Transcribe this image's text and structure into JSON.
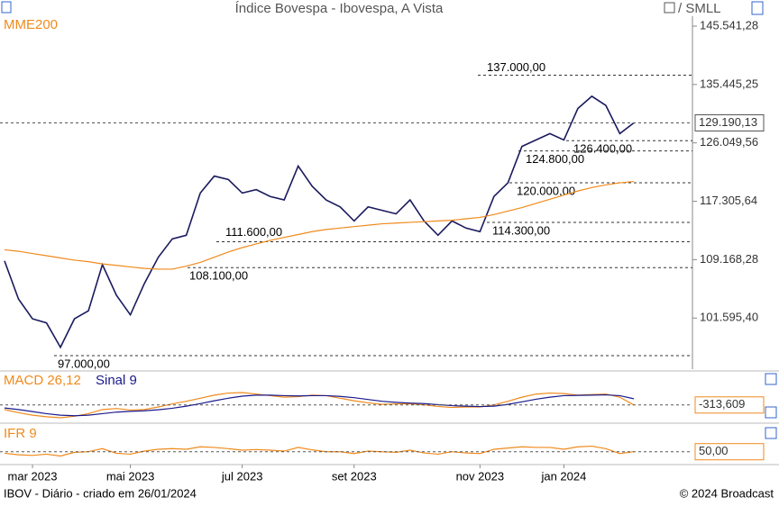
{
  "chart_data": [
    {
      "type": "line",
      "title": "Índice Bovespa - Ibovespa, A Vista",
      "subtitle": "/ SMLL",
      "log_scale": true,
      "categories": [
        null,
        null,
        "mar 2023",
        null,
        null,
        null,
        null,
        null,
        null,
        "mai 2023",
        null,
        null,
        null,
        null,
        null,
        null,
        null,
        "jul 2023",
        null,
        null,
        null,
        null,
        null,
        null,
        null,
        "set 2023",
        null,
        null,
        null,
        null,
        null,
        null,
        null,
        null,
        "nov 2023",
        null,
        null,
        null,
        null,
        null,
        "jan 2024",
        null,
        null,
        null,
        null,
        null
      ],
      "series": [
        {
          "name": "Ibovespa",
          "color": "#1a1a5e",
          "values": [
            109000,
            104000,
            101500,
            101000,
            98000,
            101500,
            102500,
            108500,
            104500,
            102000,
            106000,
            109500,
            112000,
            112500,
            118500,
            121000,
            120500,
            118500,
            119000,
            118000,
            117500,
            122500,
            119500,
            117500,
            116500,
            114500,
            116500,
            116000,
            115500,
            117500,
            114500,
            112500,
            114500,
            113500,
            113000,
            118000,
            120000,
            125500,
            126500,
            127500,
            126500,
            131500,
            133500,
            132000,
            127500,
            129190.13
          ]
        },
        {
          "name": "MME200",
          "color": "#f08a1c",
          "values": [
            110500,
            110300,
            110000,
            109700,
            109400,
            109100,
            108900,
            108600,
            108400,
            108200,
            108000,
            107900,
            107900,
            108300,
            108800,
            109500,
            110200,
            110800,
            111300,
            111800,
            112200,
            112600,
            113000,
            113300,
            113500,
            113700,
            113900,
            114100,
            114200,
            114300,
            114400,
            114500,
            114600,
            114800,
            115000,
            115400,
            115900,
            116400,
            117000,
            117600,
            118200,
            118800,
            119300,
            119700,
            120000,
            120200
          ]
        }
      ],
      "ylim": [
        95400,
        147000
      ],
      "yticks": [
        {
          "value": 145541.28,
          "label": "145.541,28"
        },
        {
          "value": 135445.25,
          "label": "135.445,25"
        },
        {
          "value": 126049.56,
          "label": "126.049,56"
        },
        {
          "value": 117305.64,
          "label": "117.305,64"
        },
        {
          "value": 109168.28,
          "label": "109.168,28"
        },
        {
          "value": 101595.4,
          "label": "101.595,40"
        }
      ],
      "last_value": {
        "value": 129190.13,
        "label": "129.190,13"
      },
      "levels": [
        {
          "value": 137000,
          "label": "137.000,00"
        },
        {
          "value": 126400,
          "label": "126.400,00"
        },
        {
          "value": 124800,
          "label": "124.800,00"
        },
        {
          "value": 120000,
          "label": "120.000,00"
        },
        {
          "value": 114300,
          "label": "114.300,00"
        },
        {
          "value": 111600,
          "label": "111.600,00"
        },
        {
          "value": 108100,
          "label": "108.100,00"
        },
        {
          "value": 97000,
          "label": "97.000,00"
        }
      ]
    },
    {
      "type": "line",
      "series": [
        {
          "name": "MACD 26,12",
          "color": "#f08a1c",
          "values": [
            -1200,
            -1800,
            -2300,
            -2600,
            -2800,
            -2500,
            -2000,
            -1200,
            -1000,
            -1300,
            -1200,
            -700,
            -100,
            400,
            1000,
            1600,
            2000,
            2100,
            1800,
            1500,
            1200,
            1300,
            1600,
            1500,
            1000,
            500,
            100,
            -200,
            -100,
            -100,
            -300,
            -600,
            -800,
            -700,
            -700,
            -300,
            400,
            1200,
            1800,
            2000,
            1900,
            1600,
            1700,
            1800,
            1200,
            -313.609
          ]
        },
        {
          "name": "Sinal 9",
          "color": "#1a1a8c",
          "values": [
            -900,
            -1200,
            -1600,
            -2000,
            -2300,
            -2400,
            -2300,
            -2000,
            -1700,
            -1550,
            -1450,
            -1250,
            -950,
            -550,
            -50,
            500,
            1000,
            1400,
            1600,
            1600,
            1500,
            1450,
            1500,
            1500,
            1350,
            1100,
            750,
            400,
            200,
            50,
            -50,
            -250,
            -450,
            -550,
            -620,
            -550,
            -200,
            300,
            800,
            1200,
            1500,
            1550,
            1600,
            1650,
            1500,
            900
          ]
        }
      ],
      "ylim": [
        -3500,
        3500
      ],
      "last_value": {
        "value": -313.609,
        "label": "-313,609"
      }
    },
    {
      "type": "line",
      "series": [
        {
          "name": "IFR 9",
          "color": "#f08a1c",
          "values": [
            45,
            40,
            38,
            42,
            36,
            48,
            50,
            60,
            45,
            42,
            52,
            58,
            60,
            58,
            66,
            64,
            60,
            55,
            57,
            55,
            52,
            64,
            56,
            50,
            50,
            44,
            52,
            50,
            48,
            55,
            46,
            42,
            50,
            46,
            44,
            58,
            62,
            66,
            64,
            64,
            58,
            66,
            68,
            60,
            44,
            50
          ]
        }
      ],
      "ylim": [
        20,
        90
      ],
      "last_value": {
        "value": 50,
        "label": "50,00"
      }
    }
  ],
  "footer": {
    "left": "IBOV - Diário - criado em 26/01/2024",
    "right": "© 2024 Broadcast"
  }
}
